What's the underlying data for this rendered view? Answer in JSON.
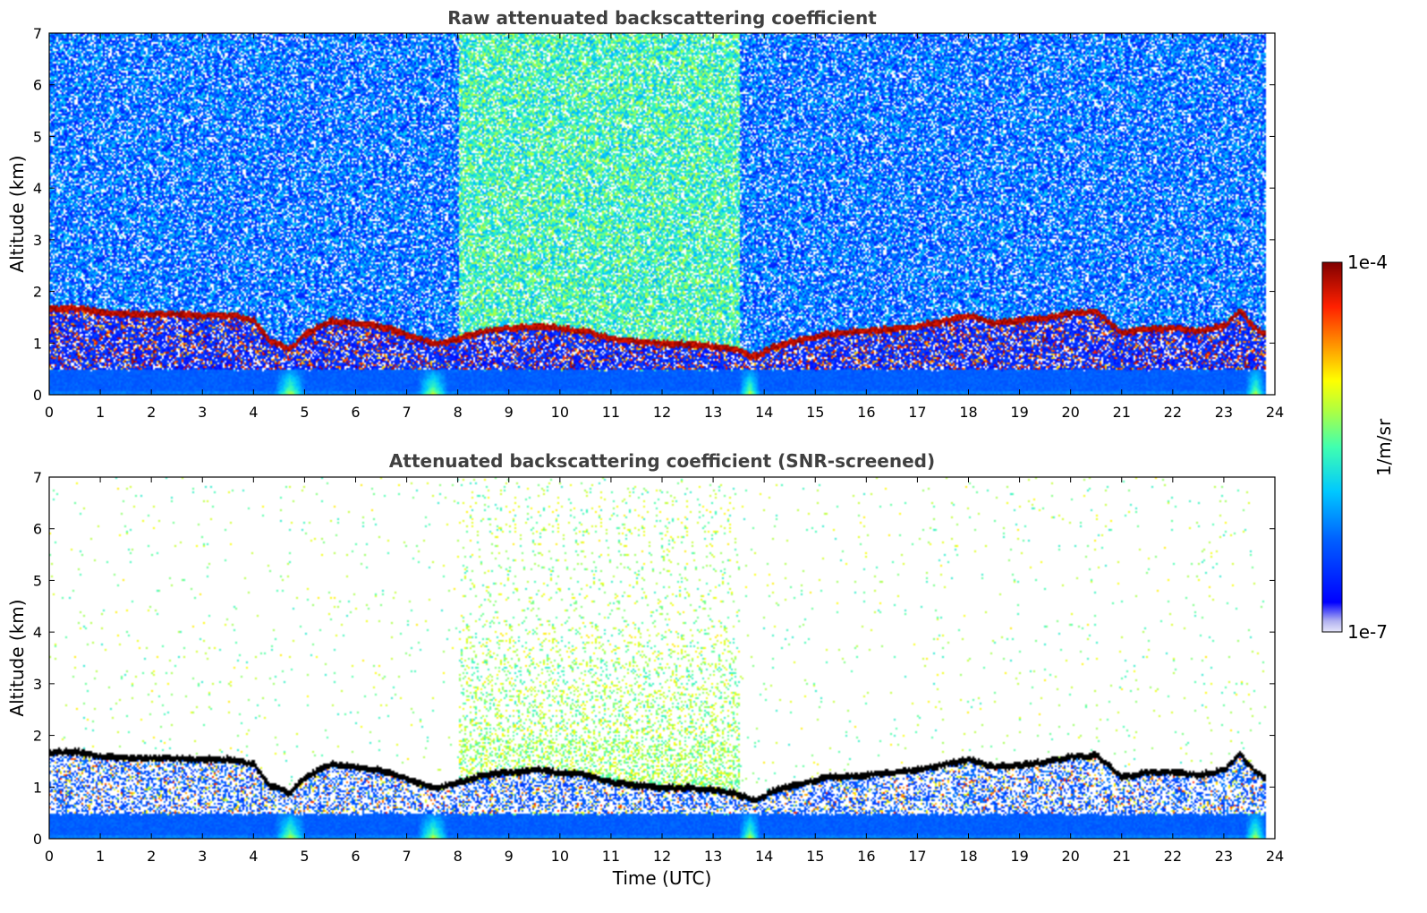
{
  "chart_data": [
    {
      "type": "heatmap",
      "title": "Raw attenuated backscattering coefficient",
      "xlabel": "",
      "ylabel": "Altitude (km)",
      "xlim": [
        0,
        24
      ],
      "ylim": [
        0,
        7
      ],
      "x_ticks": [
        0,
        1,
        2,
        3,
        4,
        5,
        6,
        7,
        8,
        9,
        10,
        11,
        12,
        13,
        14,
        15,
        16,
        17,
        18,
        19,
        20,
        21,
        22,
        23,
        24
      ],
      "y_ticks": [
        0,
        1,
        2,
        3,
        4,
        5,
        6,
        7
      ],
      "screened": false,
      "layer_top_km": [
        [
          0,
          1.68
        ],
        [
          0.5,
          1.7
        ],
        [
          0.9,
          1.62
        ],
        [
          1.5,
          1.58
        ],
        [
          2.2,
          1.58
        ],
        [
          3.0,
          1.55
        ],
        [
          3.6,
          1.55
        ],
        [
          4.0,
          1.45
        ],
        [
          4.3,
          1.05
        ],
        [
          4.7,
          0.9
        ],
        [
          5.0,
          1.2
        ],
        [
          5.5,
          1.45
        ],
        [
          6.0,
          1.4
        ],
        [
          6.4,
          1.35
        ],
        [
          6.8,
          1.25
        ],
        [
          7.2,
          1.1
        ],
        [
          7.6,
          1.0
        ],
        [
          8.0,
          1.1
        ],
        [
          8.5,
          1.25
        ],
        [
          9.0,
          1.3
        ],
        [
          9.5,
          1.35
        ],
        [
          10.0,
          1.3
        ],
        [
          10.5,
          1.25
        ],
        [
          11.0,
          1.1
        ],
        [
          11.5,
          1.05
        ],
        [
          12.0,
          1.0
        ],
        [
          12.5,
          1.0
        ],
        [
          13.0,
          0.95
        ],
        [
          13.4,
          0.9
        ],
        [
          13.8,
          0.75
        ],
        [
          14.2,
          0.95
        ],
        [
          14.8,
          1.1
        ],
        [
          15.2,
          1.2
        ],
        [
          16.0,
          1.25
        ],
        [
          17.0,
          1.35
        ],
        [
          17.5,
          1.45
        ],
        [
          18.0,
          1.55
        ],
        [
          18.5,
          1.4
        ],
        [
          19.0,
          1.45
        ],
        [
          19.5,
          1.5
        ],
        [
          20.0,
          1.6
        ],
        [
          20.5,
          1.62
        ],
        [
          21.0,
          1.2
        ],
        [
          21.5,
          1.3
        ],
        [
          22.0,
          1.3
        ],
        [
          22.5,
          1.25
        ],
        [
          23.0,
          1.35
        ],
        [
          23.3,
          1.65
        ],
        [
          23.6,
          1.3
        ],
        [
          23.8,
          1.2
        ]
      ],
      "aerosol_peak_hours": [
        [
          4.7,
          0.3
        ],
        [
          7.5,
          0.3
        ],
        [
          13.7,
          0.2
        ],
        [
          23.6,
          0.2
        ]
      ],
      "noise_plume_hours": [
        8.0,
        13.5
      ]
    },
    {
      "type": "heatmap",
      "title": "Attenuated backscattering coefficient (SNR-screened)",
      "xlabel": "Time (UTC)",
      "ylabel": "Altitude (km)",
      "xlim": [
        0,
        24
      ],
      "ylim": [
        0,
        7
      ],
      "x_ticks": [
        0,
        1,
        2,
        3,
        4,
        5,
        6,
        7,
        8,
        9,
        10,
        11,
        12,
        13,
        14,
        15,
        16,
        17,
        18,
        19,
        20,
        21,
        22,
        23,
        24
      ],
      "y_ticks": [
        0,
        1,
        2,
        3,
        4,
        5,
        6,
        7
      ],
      "screened": true
    }
  ],
  "colorbar": {
    "label": "1/m/sr",
    "max_label": "1e-4",
    "min_label": "1e-7",
    "vmin_exp": -7,
    "vmax_exp": -4,
    "colormap_stops": [
      "#e6e6fa",
      "#0000ff",
      "#0080ff",
      "#00e0e0",
      "#80ff80",
      "#ffff00",
      "#ff8000",
      "#ff0000",
      "#800000"
    ]
  },
  "colors": {
    "layer_raw": "#8b0000",
    "layer_screened": "#000000",
    "background": "#ffffff"
  }
}
